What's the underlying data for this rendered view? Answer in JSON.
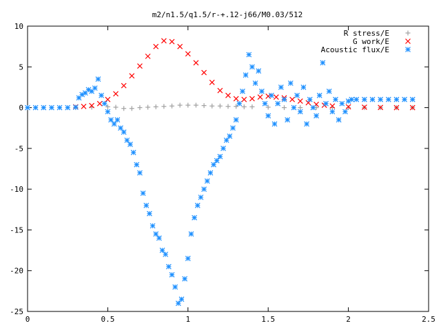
{
  "chart_data": {
    "type": "scatter",
    "title": "m2/n1.5/q1.5/r-+.12-j66/M0.03/512",
    "xlabel": "",
    "ylabel": "",
    "xlim": [
      0,
      2.5
    ],
    "ylim": [
      -25,
      10
    ],
    "x_ticks": [
      "0",
      "0.5",
      "1",
      "1.5",
      "2",
      "2.5"
    ],
    "y_ticks": [
      "10",
      "5",
      "0",
      "-5",
      "-10",
      "-15",
      "-20",
      "-25"
    ],
    "grid": false,
    "legend_position": "top-right",
    "series": [
      {
        "name": "R stress/E",
        "marker": "plus",
        "color": "#a0a0a0",
        "points": [
          [
            0.3,
            0.0
          ],
          [
            0.4,
            0.05
          ],
          [
            0.5,
            0.1
          ],
          [
            0.55,
            0.05
          ],
          [
            0.6,
            -0.1
          ],
          [
            0.65,
            -0.1
          ],
          [
            0.7,
            0.0
          ],
          [
            0.75,
            0.05
          ],
          [
            0.8,
            0.1
          ],
          [
            0.85,
            0.15
          ],
          [
            0.9,
            0.2
          ],
          [
            0.95,
            0.3
          ],
          [
            1.0,
            0.3
          ],
          [
            1.05,
            0.3
          ],
          [
            1.1,
            0.25
          ],
          [
            1.15,
            0.2
          ],
          [
            1.2,
            0.2
          ],
          [
            1.25,
            0.15
          ],
          [
            1.3,
            0.15
          ],
          [
            1.35,
            0.1
          ],
          [
            1.4,
            0.1
          ],
          [
            1.5,
            0.05
          ],
          [
            1.6,
            0.0
          ],
          [
            1.7,
            0.0
          ],
          [
            1.8,
            0.0
          ],
          [
            1.9,
            0.0
          ],
          [
            2.0,
            0.0
          ],
          [
            2.1,
            0.0
          ],
          [
            2.2,
            0.0
          ],
          [
            2.3,
            0.0
          ],
          [
            2.4,
            0.0
          ]
        ]
      },
      {
        "name": "G work/E",
        "marker": "cross",
        "color": "#ff0000",
        "points": [
          [
            0.3,
            0.1
          ],
          [
            0.35,
            0.15
          ],
          [
            0.4,
            0.25
          ],
          [
            0.45,
            0.5
          ],
          [
            0.5,
            1.0
          ],
          [
            0.55,
            1.7
          ],
          [
            0.6,
            2.7
          ],
          [
            0.65,
            3.9
          ],
          [
            0.7,
            5.1
          ],
          [
            0.75,
            6.3
          ],
          [
            0.8,
            7.5
          ],
          [
            0.85,
            8.2
          ],
          [
            0.9,
            8.1
          ],
          [
            0.95,
            7.5
          ],
          [
            1.0,
            6.6
          ],
          [
            1.05,
            5.5
          ],
          [
            1.1,
            4.3
          ],
          [
            1.15,
            3.1
          ],
          [
            1.2,
            2.1
          ],
          [
            1.25,
            1.5
          ],
          [
            1.3,
            1.1
          ],
          [
            1.35,
            1.0
          ],
          [
            1.4,
            1.1
          ],
          [
            1.45,
            1.3
          ],
          [
            1.5,
            1.4
          ],
          [
            1.55,
            1.3
          ],
          [
            1.6,
            1.2
          ],
          [
            1.65,
            1.0
          ],
          [
            1.7,
            0.8
          ],
          [
            1.75,
            0.6
          ],
          [
            1.8,
            0.4
          ],
          [
            1.85,
            0.3
          ],
          [
            1.9,
            0.2
          ],
          [
            2.0,
            0.1
          ],
          [
            2.1,
            0.05
          ],
          [
            2.2,
            0.02
          ],
          [
            2.3,
            0.0
          ],
          [
            2.4,
            0.0
          ]
        ]
      },
      {
        "name": "Acoustic flux/E",
        "marker": "star",
        "color": "#1e90ff",
        "points": [
          [
            0.0,
            0.0
          ],
          [
            0.05,
            0.0
          ],
          [
            0.1,
            0.0
          ],
          [
            0.15,
            0.0
          ],
          [
            0.2,
            0.0
          ],
          [
            0.25,
            0.0
          ],
          [
            0.3,
            0.05
          ],
          [
            0.32,
            1.2
          ],
          [
            0.34,
            1.6
          ],
          [
            0.36,
            1.8
          ],
          [
            0.38,
            2.2
          ],
          [
            0.4,
            2.0
          ],
          [
            0.42,
            2.4
          ],
          [
            0.44,
            3.5
          ],
          [
            0.46,
            1.5
          ],
          [
            0.48,
            0.5
          ],
          [
            0.5,
            -0.5
          ],
          [
            0.52,
            -1.5
          ],
          [
            0.54,
            -2.0
          ],
          [
            0.56,
            -1.5
          ],
          [
            0.58,
            -2.5
          ],
          [
            0.6,
            -3.0
          ],
          [
            0.62,
            -4.0
          ],
          [
            0.64,
            -4.5
          ],
          [
            0.66,
            -5.5
          ],
          [
            0.68,
            -7.0
          ],
          [
            0.7,
            -8.0
          ],
          [
            0.72,
            -10.5
          ],
          [
            0.74,
            -12.0
          ],
          [
            0.76,
            -13.0
          ],
          [
            0.78,
            -14.5
          ],
          [
            0.8,
            -15.5
          ],
          [
            0.82,
            -16.0
          ],
          [
            0.84,
            -17.5
          ],
          [
            0.86,
            -18.0
          ],
          [
            0.88,
            -19.5
          ],
          [
            0.9,
            -20.5
          ],
          [
            0.92,
            -22.0
          ],
          [
            0.94,
            -24.0
          ],
          [
            0.96,
            -23.5
          ],
          [
            0.98,
            -21.0
          ],
          [
            1.0,
            -18.5
          ],
          [
            1.02,
            -15.5
          ],
          [
            1.04,
            -13.5
          ],
          [
            1.06,
            -12.0
          ],
          [
            1.08,
            -11.0
          ],
          [
            1.1,
            -10.0
          ],
          [
            1.12,
            -9.0
          ],
          [
            1.14,
            -8.0
          ],
          [
            1.16,
            -7.0
          ],
          [
            1.18,
            -6.5
          ],
          [
            1.2,
            -6.0
          ],
          [
            1.22,
            -5.0
          ],
          [
            1.24,
            -4.0
          ],
          [
            1.26,
            -3.5
          ],
          [
            1.28,
            -2.5
          ],
          [
            1.3,
            -1.5
          ],
          [
            1.32,
            0.5
          ],
          [
            1.34,
            2.0
          ],
          [
            1.36,
            4.0
          ],
          [
            1.38,
            6.5
          ],
          [
            1.4,
            5.0
          ],
          [
            1.42,
            3.0
          ],
          [
            1.44,
            4.5
          ],
          [
            1.46,
            2.0
          ],
          [
            1.48,
            0.5
          ],
          [
            1.5,
            -1.0
          ],
          [
            1.52,
            1.5
          ],
          [
            1.54,
            -2.0
          ],
          [
            1.56,
            0.5
          ],
          [
            1.58,
            2.5
          ],
          [
            1.6,
            1.0
          ],
          [
            1.62,
            -1.5
          ],
          [
            1.64,
            3.0
          ],
          [
            1.66,
            0.0
          ],
          [
            1.68,
            1.5
          ],
          [
            1.7,
            -0.5
          ],
          [
            1.72,
            2.5
          ],
          [
            1.74,
            -2.0
          ],
          [
            1.76,
            1.0
          ],
          [
            1.78,
            0.0
          ],
          [
            1.8,
            -1.0
          ],
          [
            1.82,
            1.5
          ],
          [
            1.84,
            5.5
          ],
          [
            1.86,
            0.5
          ],
          [
            1.88,
            2.0
          ],
          [
            1.9,
            -0.5
          ],
          [
            1.92,
            1.0
          ],
          [
            1.94,
            -1.5
          ],
          [
            1.96,
            0.5
          ],
          [
            1.98,
            -0.5
          ],
          [
            2.0,
            0.8
          ],
          [
            2.02,
            1.0
          ],
          [
            2.05,
            1.0
          ],
          [
            2.1,
            1.0
          ],
          [
            2.15,
            1.0
          ],
          [
            2.2,
            1.0
          ],
          [
            2.25,
            1.0
          ],
          [
            2.3,
            1.0
          ],
          [
            2.35,
            1.0
          ],
          [
            2.4,
            1.0
          ]
        ]
      }
    ]
  }
}
